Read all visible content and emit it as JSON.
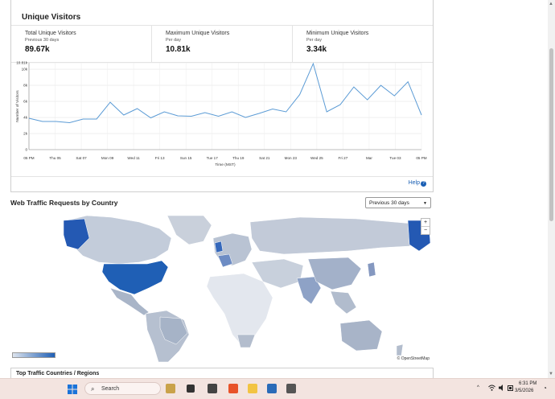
{
  "visitors": {
    "title": "Unique Visitors",
    "stats": [
      {
        "label": "Total Unique Visitors",
        "sub": "Previous 30 days",
        "value": "89.67k"
      },
      {
        "label": "Maximum Unique Visitors",
        "sub": "Per day",
        "value": "10.81k"
      },
      {
        "label": "Minimum Unique Visitors",
        "sub": "Per day",
        "value": "3.34k"
      }
    ],
    "help": "Help"
  },
  "chart_data": {
    "type": "line",
    "xlabel": "Time (MST)",
    "ylabel": "Number of Visitors",
    "yticks": [
      "0",
      "2k",
      "4k",
      "6k",
      "8k",
      "10k",
      "10.81k"
    ],
    "ylim": [
      0,
      10810
    ],
    "xticks": [
      "05 PM",
      "Thu 05",
      "Sat 07",
      "Mon 09",
      "Wed 11",
      "Fri 13",
      "Sun 15",
      "Tue 17",
      "Thu 19",
      "Sat 21",
      "Mon 23",
      "Wed 25",
      "Fri 27",
      "Mar",
      "Tue 03",
      "05 PM"
    ],
    "grid": true,
    "series": [
      {
        "values": [
          3900,
          3500,
          3500,
          3350,
          3800,
          3800,
          5900,
          4300,
          5100,
          3950,
          4700,
          4200,
          4150,
          4600,
          4150,
          4700,
          4000,
          4500,
          5050,
          4700,
          6850,
          10700,
          4700,
          5600,
          7800,
          6200,
          8000,
          6700,
          8450,
          4300
        ]
      }
    ]
  },
  "traffic": {
    "title": "Web Traffic Requests by Country",
    "period": "Previous 30 days",
    "zoom_in": "+",
    "zoom_out": "−",
    "attribution": "© OpenStreetMap"
  },
  "next_section": {
    "title": "Top Traffic Countries / Regions"
  },
  "taskbar": {
    "search_placeholder": "Search",
    "time": "6:31 PM",
    "date": "3/5/2026"
  },
  "colors": {
    "accent": "#1f5fb5",
    "line": "#5b9bd5",
    "land": "#b8c2d2"
  }
}
